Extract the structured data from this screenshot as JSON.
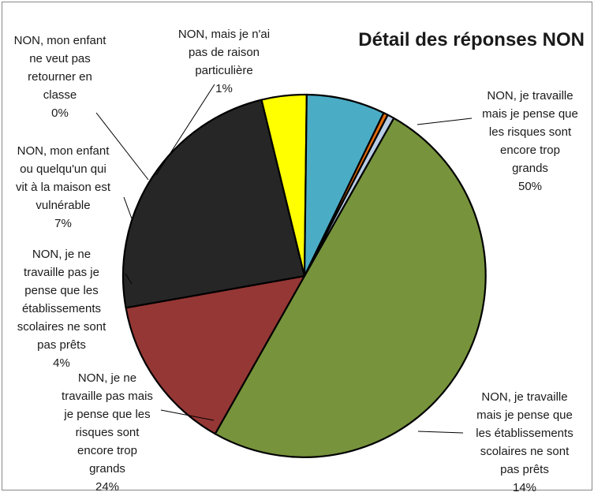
{
  "chart_data": {
    "type": "pie",
    "title": "Détail des réponses NON",
    "slices": [
      {
        "label_lines": [
          "NON, je travaille",
          "mais je pense que",
          "les risques sont",
          "encore trop",
          "grands"
        ],
        "pct_label": "50%",
        "value": 50,
        "color": "#77933c"
      },
      {
        "label_lines": [
          "NON, je travaille",
          "mais je pense que",
          "les établissements",
          "scolaires ne sont",
          "pas prêts"
        ],
        "pct_label": "14%",
        "value": 14,
        "color": "#953735"
      },
      {
        "label_lines": [
          "NON, je ne",
          "travaille pas mais",
          "je pense que les",
          "risques sont",
          "encore trop",
          "grands"
        ],
        "pct_label": "24%",
        "value": 24,
        "color": "#262626"
      },
      {
        "label_lines": [
          "NON, je ne",
          "travaille pas je",
          "pense que les",
          "établissements",
          "scolaires ne sont",
          "pas prêts"
        ],
        "pct_label": "4%",
        "value": 4,
        "color": "#ffff00"
      },
      {
        "label_lines": [
          "NON, mon enfant",
          "ou quelqu'un qui",
          "vit à la maison est",
          "vulnérable"
        ],
        "pct_label": "7%",
        "value": 7,
        "color": "#4bacc6"
      },
      {
        "label_lines": [
          "NON, mon enfant",
          "ne veut pas",
          "retourner en",
          "classe"
        ],
        "pct_label": "0%",
        "value": 0.4,
        "color": "#e46c0a"
      },
      {
        "label_lines": [
          "NON, mais je n'ai",
          "pas de raison",
          "particulière"
        ],
        "pct_label": "1%",
        "value": 0.6,
        "color": "#b9cde5"
      }
    ]
  }
}
